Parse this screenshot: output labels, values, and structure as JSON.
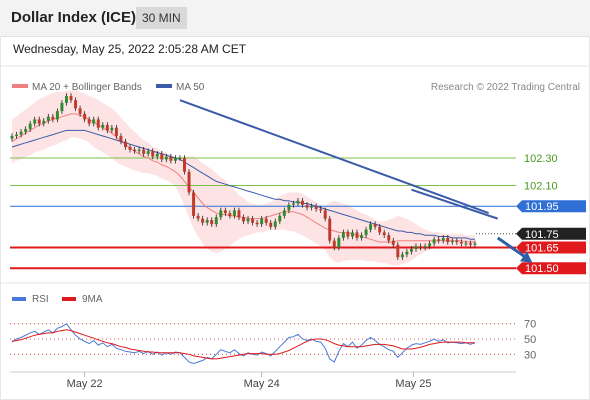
{
  "header": {
    "title": "Dollar Index (ICE)",
    "interval": "30 MIN"
  },
  "timestamp": "Wednesday, May 25, 2022 2:05:28 AM CET",
  "colors": {
    "background": "#ffffff",
    "candle_up": "#2e8b2e",
    "candle_down": "#c0392b",
    "bollinger": "#f08080",
    "ma50": "#3a5ba8",
    "trendline": "#3a5ba8",
    "green_level": "#7cc24a",
    "blue_level": "#2f6fd6",
    "red_level": "#e0191c",
    "rsi": "#4a78d6",
    "rsi_ma": "#e0191c",
    "grid": "#dddddd"
  },
  "chart_data": [
    {
      "type": "candlestick",
      "legend": [
        {
          "label": "MA 20 + Bollinger Bands",
          "color": "#f08080"
        },
        {
          "label": "MA 50",
          "color": "#3a5ba8"
        }
      ],
      "credit": "Research © 2022 Trading Central",
      "ylim": [
        101.4,
        102.75
      ],
      "x_ticks": [
        "May 22",
        "May 24",
        "May 25"
      ],
      "levels": [
        {
          "value": 102.3,
          "label": "102.30",
          "color": "#7cc24a",
          "style": "thin"
        },
        {
          "value": 102.1,
          "label": "102.10",
          "color": "#7cc24a",
          "style": "thin"
        },
        {
          "value": 101.95,
          "label": "101.95",
          "color": "#2f6fd6",
          "style": "box"
        },
        {
          "value": 101.75,
          "label": "101.75",
          "color": "#222222",
          "style": "box"
        },
        {
          "value": 101.65,
          "label": "101.65",
          "color": "#e0191c",
          "style": "box"
        },
        {
          "value": 101.5,
          "label": "101.50",
          "color": "#e0191c",
          "style": "box"
        }
      ],
      "trendlines": [
        {
          "from": {
            "bar": 37,
            "value": 102.72
          },
          "to": {
            "bar": 105,
            "value": 101.9
          }
        },
        {
          "from": {
            "bar": 88,
            "value": 102.07
          },
          "to": {
            "bar": 107,
            "value": 101.86
          }
        }
      ],
      "forecast_arrow": {
        "from": {
          "bar": 107,
          "value": 101.72
        },
        "to": {
          "bar": 112,
          "value": 101.54
        }
      },
      "close": [
        102.46,
        102.47,
        102.49,
        102.51,
        102.55,
        102.58,
        102.55,
        102.57,
        102.6,
        102.58,
        102.64,
        102.7,
        102.75,
        102.72,
        102.66,
        102.62,
        102.58,
        102.55,
        102.58,
        102.52,
        102.54,
        102.5,
        102.52,
        102.46,
        102.42,
        102.38,
        102.36,
        102.35,
        102.36,
        102.33,
        102.35,
        102.31,
        102.33,
        102.29,
        102.31,
        102.28,
        102.3,
        102.3,
        102.2,
        102.05,
        101.88,
        101.86,
        101.83,
        101.85,
        101.82,
        101.87,
        101.92,
        101.9,
        101.88,
        101.92,
        101.87,
        101.84,
        101.86,
        101.83,
        101.82,
        101.86,
        101.83,
        101.8,
        101.84,
        101.88,
        101.92,
        101.96,
        101.97,
        101.99,
        101.96,
        101.94,
        101.95,
        101.93,
        101.92,
        101.86,
        101.7,
        101.65,
        101.72,
        101.76,
        101.73,
        101.76,
        101.72,
        101.74,
        101.78,
        101.82,
        101.8,
        101.76,
        101.74,
        101.7,
        101.67,
        101.58,
        101.6,
        101.62,
        101.64,
        101.66,
        101.65,
        101.66,
        101.68,
        101.71,
        101.7,
        101.72,
        101.69,
        101.7,
        101.69,
        101.68,
        101.68,
        101.67,
        101.68
      ],
      "ma20": [
        102.42,
        102.44,
        102.46,
        102.48,
        102.5,
        102.52,
        102.54,
        102.55,
        102.57,
        102.58,
        102.59,
        102.6,
        102.61,
        102.62,
        102.62,
        102.61,
        102.6,
        102.58,
        102.56,
        102.54,
        102.52,
        102.5,
        102.48,
        102.45,
        102.42,
        102.4,
        102.37,
        102.35,
        102.33,
        102.31,
        102.3,
        102.28,
        102.27,
        102.25,
        102.24,
        102.22,
        102.2,
        102.17,
        102.13,
        102.09,
        102.05,
        102.01,
        101.97,
        101.94,
        101.92,
        101.9,
        101.89,
        101.89,
        101.88,
        101.88,
        101.87,
        101.87,
        101.86,
        101.86,
        101.86,
        101.86,
        101.87,
        101.88,
        101.89,
        101.9,
        101.91,
        101.91,
        101.91,
        101.9,
        101.89,
        101.87,
        101.85,
        101.83,
        101.81,
        101.79,
        101.78,
        101.77,
        101.76,
        101.76,
        101.76,
        101.75,
        101.74,
        101.73,
        101.72,
        101.71,
        101.7,
        101.69,
        101.69,
        101.69,
        101.69,
        101.7,
        101.7,
        101.7,
        101.7,
        101.7,
        101.7,
        101.7,
        101.7,
        101.7,
        101.7,
        101.7,
        101.7,
        101.7,
        101.7,
        101.7,
        101.69,
        101.69,
        101.69
      ],
      "ma50": [
        102.38,
        102.39,
        102.4,
        102.41,
        102.42,
        102.43,
        102.44,
        102.45,
        102.46,
        102.47,
        102.48,
        102.49,
        102.5,
        102.5,
        102.5,
        102.5,
        102.5,
        102.49,
        102.48,
        102.47,
        102.46,
        102.45,
        102.44,
        102.43,
        102.42,
        102.41,
        102.4,
        102.39,
        102.38,
        102.37,
        102.36,
        102.35,
        102.34,
        102.33,
        102.32,
        102.31,
        102.3,
        102.29,
        102.27,
        102.25,
        102.23,
        102.21,
        102.19,
        102.17,
        102.15,
        102.13,
        102.12,
        102.11,
        102.1,
        102.09,
        102.08,
        102.07,
        102.06,
        102.05,
        102.04,
        102.03,
        102.02,
        102.01,
        102.0,
        102.0,
        101.99,
        101.99,
        101.98,
        101.98,
        101.97,
        101.97,
        101.96,
        101.95,
        101.94,
        101.93,
        101.92,
        101.91,
        101.9,
        101.89,
        101.88,
        101.87,
        101.86,
        101.85,
        101.84,
        101.83,
        101.82,
        101.81,
        101.8,
        101.79,
        101.78,
        101.77,
        101.77,
        101.76,
        101.76,
        101.75,
        101.75,
        101.74,
        101.74,
        101.74,
        101.73,
        101.73,
        101.73,
        101.72,
        101.72,
        101.72,
        101.72,
        101.71,
        101.71
      ],
      "band_width": [
        0.16,
        0.16,
        0.17,
        0.17,
        0.18,
        0.18,
        0.19,
        0.19,
        0.19,
        0.19,
        0.19,
        0.18,
        0.18,
        0.17,
        0.17,
        0.17,
        0.17,
        0.17,
        0.18,
        0.18,
        0.18,
        0.18,
        0.18,
        0.18,
        0.17,
        0.16,
        0.15,
        0.14,
        0.13,
        0.12,
        0.11,
        0.1,
        0.1,
        0.1,
        0.1,
        0.1,
        0.11,
        0.14,
        0.18,
        0.22,
        0.26,
        0.28,
        0.29,
        0.3,
        0.3,
        0.29,
        0.27,
        0.25,
        0.22,
        0.19,
        0.16,
        0.14,
        0.12,
        0.11,
        0.1,
        0.1,
        0.1,
        0.1,
        0.11,
        0.12,
        0.13,
        0.14,
        0.14,
        0.15,
        0.15,
        0.15,
        0.15,
        0.15,
        0.15,
        0.16,
        0.2,
        0.22,
        0.22,
        0.21,
        0.2,
        0.19,
        0.18,
        0.17,
        0.17,
        0.16,
        0.15,
        0.15,
        0.15,
        0.16,
        0.17,
        0.18,
        0.17,
        0.16,
        0.14,
        0.12,
        0.1,
        0.08,
        0.07,
        0.06,
        0.06,
        0.05,
        0.05,
        0.05,
        0.05,
        0.05,
        0.05,
        0.05,
        0.05
      ]
    },
    {
      "type": "line",
      "legend": [
        {
          "label": "RSI",
          "color": "#4a78d6"
        },
        {
          "label": "9MA",
          "color": "#e0191c"
        }
      ],
      "ylim": [
        20,
        80
      ],
      "y_ticks": [
        "70",
        "50",
        "30"
      ],
      "rsi": [
        46,
        50,
        52,
        55,
        58,
        60,
        56,
        59,
        62,
        58,
        64,
        66,
        70,
        62,
        55,
        50,
        47,
        44,
        48,
        42,
        45,
        40,
        43,
        38,
        36,
        34,
        33,
        32,
        34,
        31,
        34,
        30,
        33,
        29,
        32,
        30,
        33,
        32,
        26,
        20,
        18,
        20,
        22,
        26,
        24,
        30,
        36,
        34,
        32,
        36,
        31,
        28,
        32,
        30,
        29,
        33,
        31,
        28,
        34,
        40,
        46,
        52,
        53,
        56,
        50,
        48,
        50,
        47,
        46,
        38,
        24,
        20,
        34,
        44,
        40,
        46,
        38,
        42,
        48,
        52,
        48,
        43,
        40,
        36,
        34,
        26,
        32,
        38,
        42,
        44,
        43,
        45,
        47,
        50,
        47,
        49,
        45,
        46,
        45,
        44,
        45,
        43,
        45
      ],
      "rsi_ma": [
        47,
        48,
        49,
        51,
        53,
        55,
        56,
        57,
        58,
        58,
        60,
        61,
        62,
        61,
        59,
        57,
        55,
        53,
        51,
        49,
        47,
        45,
        44,
        42,
        40,
        39,
        37,
        36,
        35,
        34,
        33,
        33,
        32,
        32,
        32,
        32,
        32,
        32,
        31,
        30,
        28,
        27,
        26,
        25,
        24,
        24,
        25,
        26,
        27,
        28,
        29,
        30,
        31,
        31,
        31,
        31,
        30,
        30,
        30,
        31,
        33,
        35,
        38,
        41,
        44,
        47,
        49,
        50,
        50,
        49,
        47,
        44,
        42,
        41,
        40,
        40,
        40,
        40,
        41,
        42,
        43,
        43,
        43,
        42,
        41,
        39,
        37,
        37,
        37,
        38,
        39,
        41,
        43,
        44,
        45,
        46,
        46,
        46,
        46,
        46,
        45,
        45,
        45
      ]
    }
  ]
}
